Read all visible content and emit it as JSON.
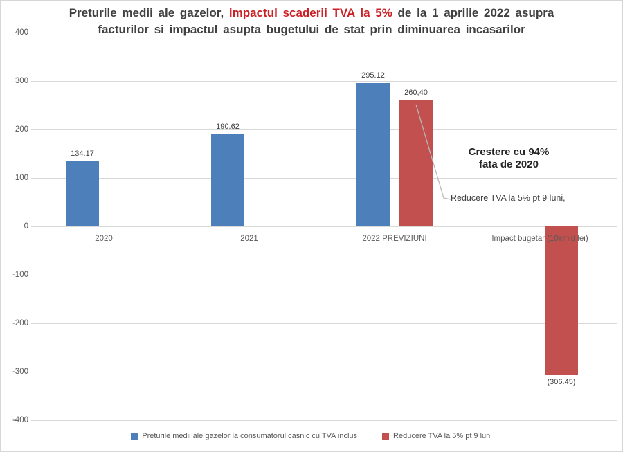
{
  "title": {
    "line1_part1": "Preturile medii ale gazelor, ",
    "line1_part2": "impactul scaderii TVA la 5%",
    "line1_part3": " de la 1 aprilie 2022 asupra",
    "line2": "facturilor si impactul asupta bugetului de stat prin diminuarea incasarilor",
    "highlight_color": "#cb2026",
    "text_color": "#404040"
  },
  "chart_data": {
    "type": "bar",
    "title": "Preturile medii ale gazelor, impactul scaderii TVA la 5% de la 1 aprilie 2022 asupra facturilor si impactul asupta bugetului de stat prin diminuarea incasarilor",
    "categories": [
      "2020",
      "2021",
      "2022 PREVIZIUNI",
      "Impact bugetar (10xmld lei)"
    ],
    "series": [
      {
        "name": "Preturile medii ale gazelor la consumatorul casnic cu TVA inclus",
        "color": "#4d80bb",
        "values": [
          134.17,
          190.62,
          295.12,
          null
        ],
        "value_labels": [
          "134.17",
          "190.62",
          "295.12",
          null
        ]
      },
      {
        "name": "Reducere TVA la 5% pt 9 luni",
        "color": "#c1504e",
        "values": [
          null,
          null,
          260.4,
          -306.45
        ],
        "value_labels": [
          null,
          null,
          "260,40",
          "(306.45)"
        ]
      }
    ],
    "xlabel": "",
    "ylabel": "",
    "ylim": [
      -400,
      400
    ],
    "yticks": [
      400,
      300,
      200,
      100,
      0,
      -100,
      -200,
      -300,
      -400
    ],
    "grid": true,
    "legend_position": "bottom"
  },
  "annotations": {
    "growth_line1": "Crestere cu 94%",
    "growth_line2": "fata de 2020",
    "callout": "Reducere TVA la 5% pt 9 luni,"
  }
}
